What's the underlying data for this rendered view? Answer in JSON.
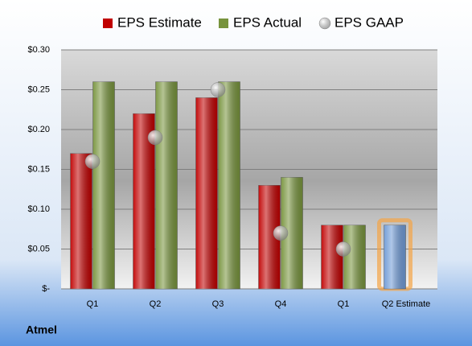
{
  "chart_data": {
    "type": "bar",
    "title": "Atmel",
    "categories": [
      "Q1",
      "Q2",
      "Q3",
      "Q4",
      "Q1",
      "Q2 Estimate"
    ],
    "series": [
      {
        "name": "EPS Estimate",
        "color": "#c00000",
        "values": [
          0.17,
          0.22,
          0.24,
          0.13,
          0.08,
          0.08
        ],
        "colors": [
          "#c00000",
          "#c00000",
          "#c00000",
          "#c00000",
          "#c00000",
          "#6f9ad6"
        ]
      },
      {
        "name": "EPS Actual",
        "color": "#77933c",
        "values": [
          0.26,
          0.26,
          0.26,
          0.14,
          0.08,
          null
        ]
      },
      {
        "name": "EPS GAAP",
        "color": "#a6a6a6",
        "marker": "circle",
        "values": [
          0.16,
          0.19,
          0.25,
          0.07,
          0.05,
          null
        ]
      }
    ],
    "ylim": [
      0,
      0.3
    ],
    "yticks": [
      {
        "value": 0,
        "label": "$-"
      },
      {
        "value": 0.05,
        "label": "$0.05"
      },
      {
        "value": 0.1,
        "label": "$0.10"
      },
      {
        "value": 0.15,
        "label": "$0.15"
      },
      {
        "value": 0.2,
        "label": "$0.20"
      },
      {
        "value": 0.25,
        "label": "$0.25"
      },
      {
        "value": 0.3,
        "label": "$0.30"
      }
    ],
    "grid": true
  }
}
